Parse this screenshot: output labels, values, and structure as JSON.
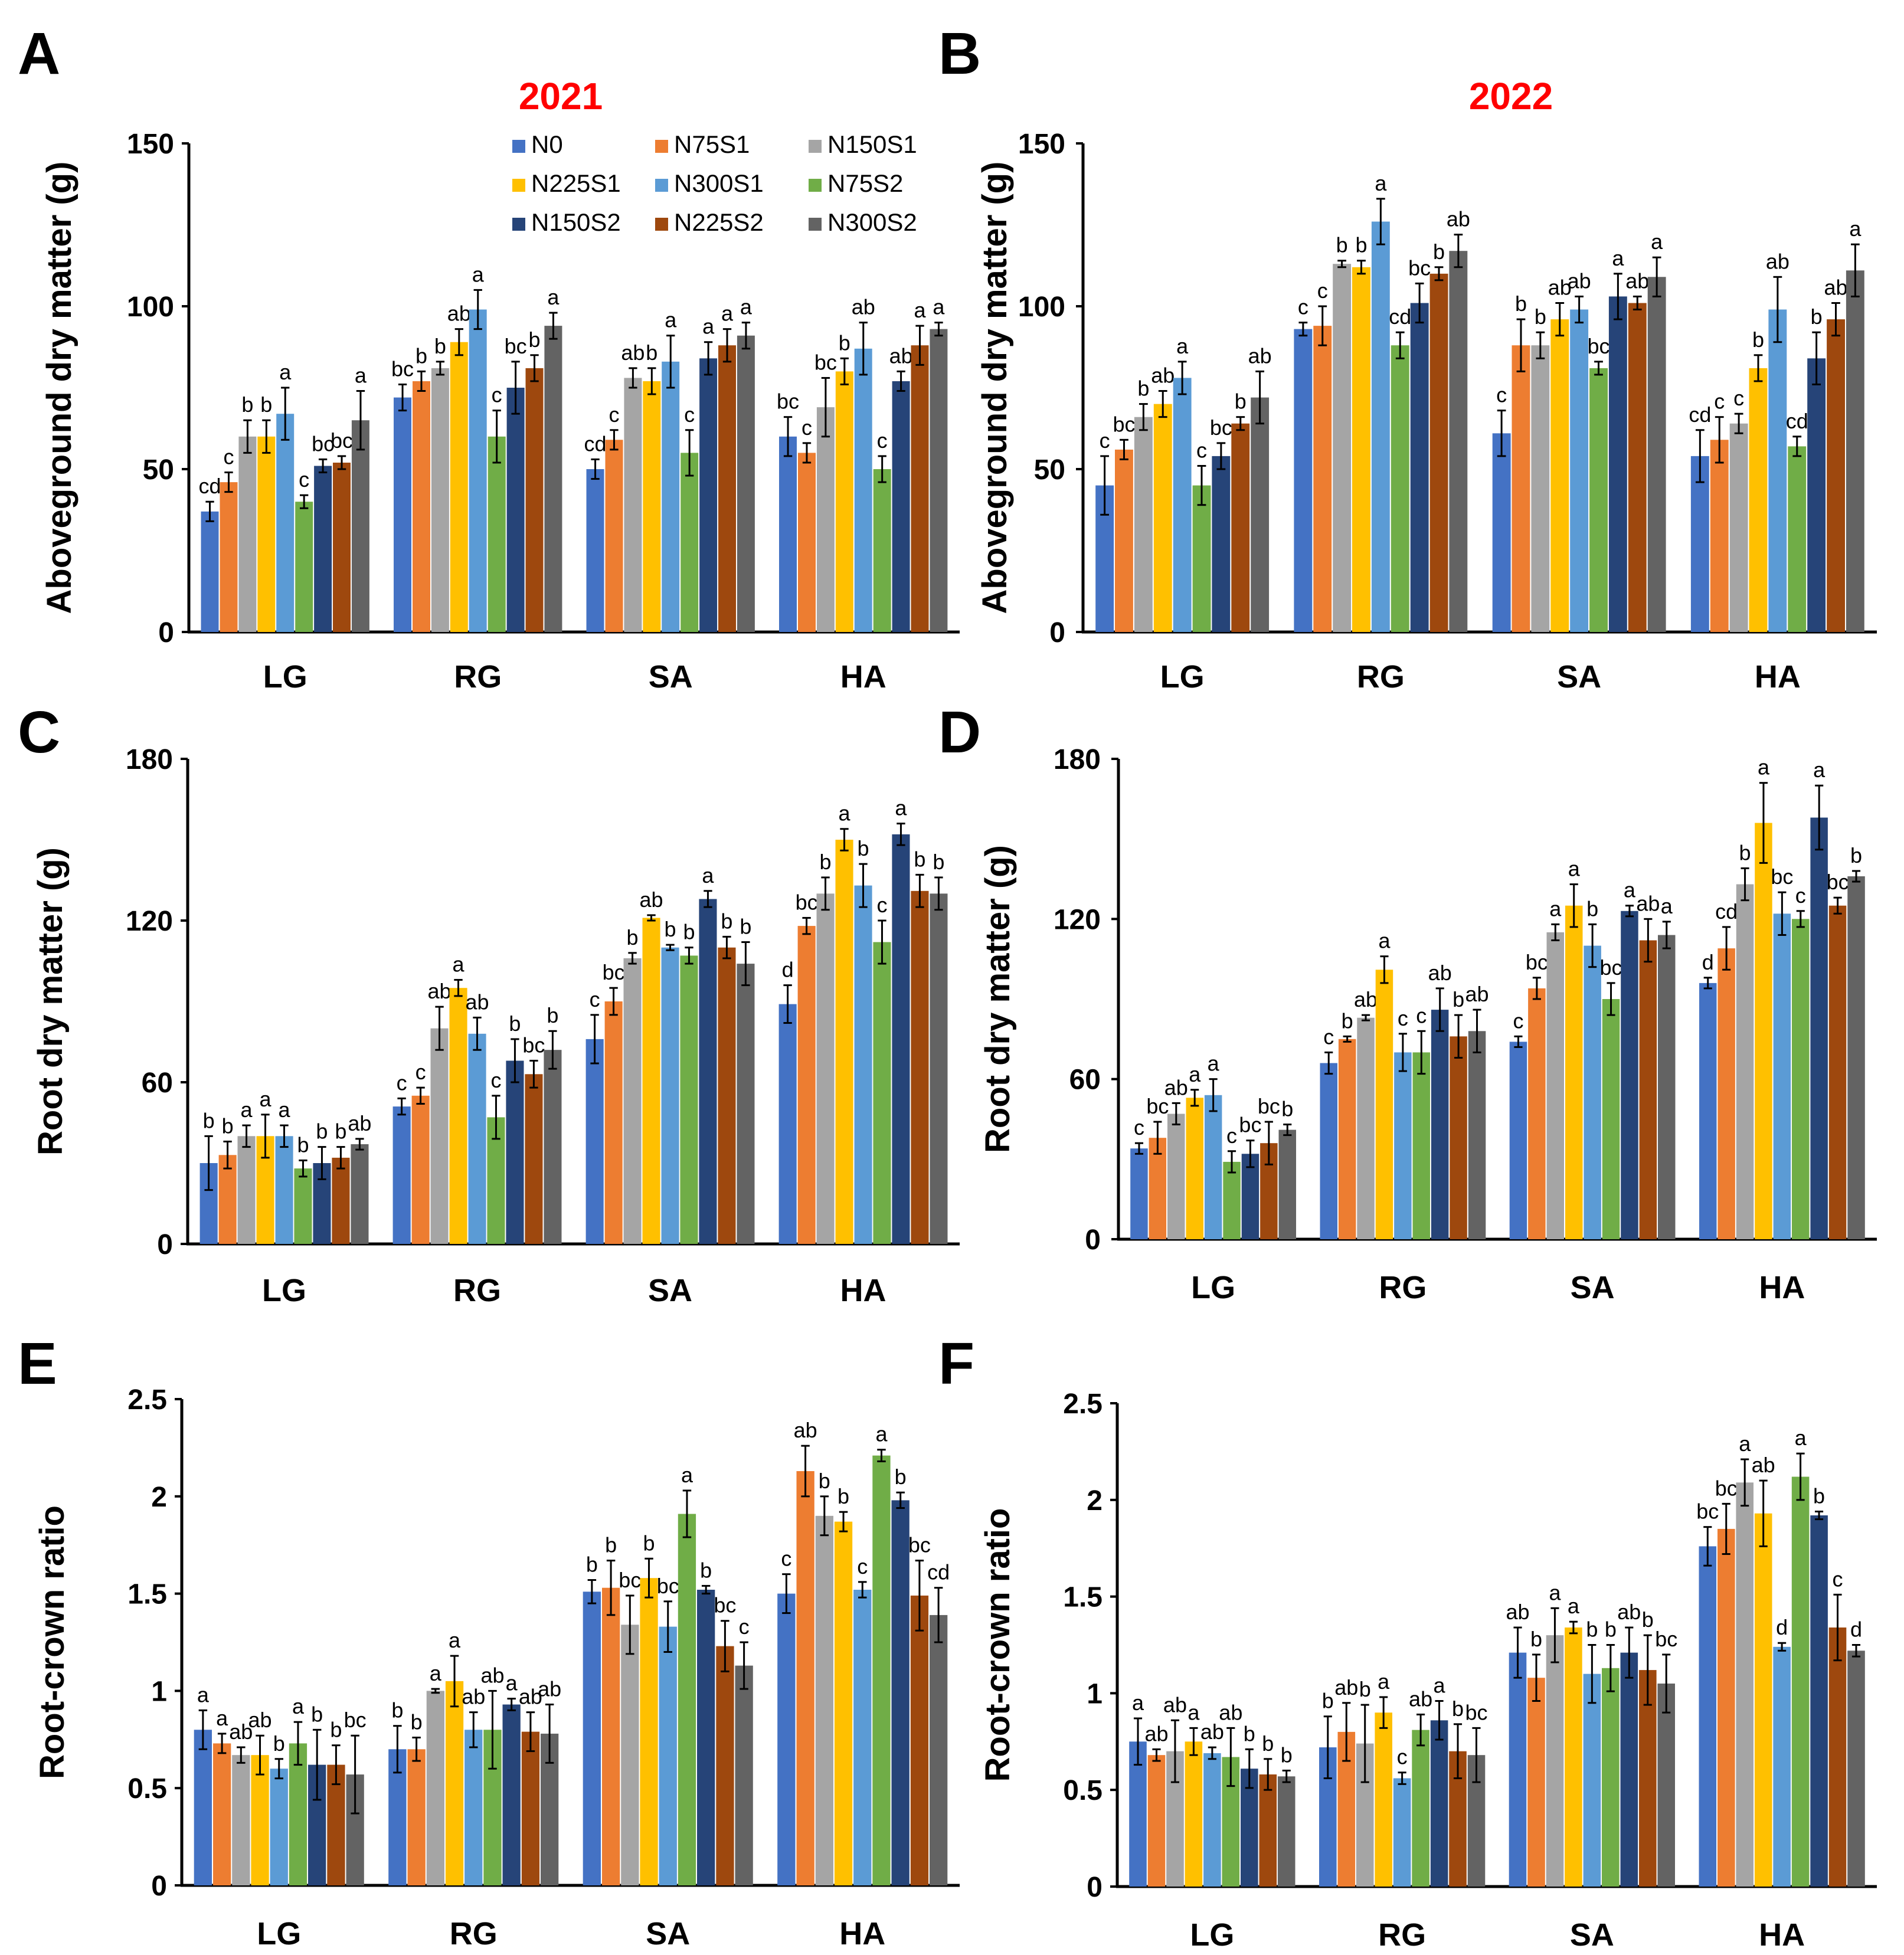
{
  "series": [
    {
      "name": "N0",
      "color": "#4472c4"
    },
    {
      "name": "N75S1",
      "color": "#ed7d31"
    },
    {
      "name": "N150S1",
      "color": "#a5a5a5"
    },
    {
      "name": "N225S1",
      "color": "#ffc000"
    },
    {
      "name": "N300S1",
      "color": "#5b9bd5"
    },
    {
      "name": "N75S2",
      "color": "#70ad47"
    },
    {
      "name": "N150S2",
      "color": "#264478"
    },
    {
      "name": "N225S2",
      "color": "#9e480e"
    },
    {
      "name": "N300S2",
      "color": "#636363"
    }
  ],
  "chart_data": [
    {
      "panel": "A",
      "title": "2021",
      "type": "bar",
      "ylabel": "Aboveground dry matter (g)",
      "categories": [
        "LG",
        "RG",
        "SA",
        "HA"
      ],
      "ylim": [
        0,
        150
      ],
      "yticks": [
        "0",
        "50",
        "100",
        "150"
      ],
      "values": [
        [
          37,
          46,
          60,
          60,
          67,
          40,
          51,
          52,
          65
        ],
        [
          72,
          77,
          81,
          89,
          99,
          60,
          75,
          81,
          94
        ],
        [
          50,
          59,
          78,
          77,
          83,
          55,
          84,
          88,
          91
        ],
        [
          60,
          55,
          69,
          80,
          87,
          50,
          77,
          88,
          93
        ]
      ],
      "errors": [
        [
          3,
          3,
          5,
          5,
          8,
          2,
          2,
          2,
          9
        ],
        [
          4,
          3,
          2,
          4,
          6,
          8,
          8,
          4,
          4
        ],
        [
          3,
          3,
          3,
          4,
          8,
          7,
          5,
          5,
          4
        ],
        [
          6,
          3,
          9,
          4,
          8,
          4,
          3,
          6,
          2
        ]
      ],
      "letters": [
        [
          "cd",
          "c",
          "b",
          "b",
          "a",
          "c",
          "bc",
          "bc",
          "a"
        ],
        [
          "bc",
          "b",
          "b",
          "ab",
          "a",
          "c",
          "bc",
          "b",
          "a"
        ],
        [
          "cd",
          "c",
          "ab",
          "b",
          "a",
          "c",
          "a",
          "a",
          "a"
        ],
        [
          "bc",
          "c",
          "bc",
          "b",
          "ab",
          "c",
          "ab",
          "a",
          "a"
        ]
      ]
    },
    {
      "panel": "B",
      "title": "2022",
      "type": "bar",
      "ylabel": "Aboveground dry matter (g)",
      "categories": [
        "LG",
        "RG",
        "SA",
        "HA"
      ],
      "ylim": [
        0,
        150
      ],
      "yticks": [
        "0",
        "50",
        "100",
        "150"
      ],
      "values": [
        [
          45,
          56,
          66,
          70,
          78,
          45,
          54,
          64,
          72
        ],
        [
          93,
          94,
          113,
          112,
          126,
          88,
          101,
          110,
          117
        ],
        [
          61,
          88,
          88,
          96,
          99,
          81,
          103,
          101,
          109
        ],
        [
          54,
          59,
          64,
          81,
          99,
          57,
          84,
          96,
          111
        ]
      ],
      "errors": [
        [
          9,
          3,
          4,
          4,
          5,
          6,
          4,
          2,
          8
        ],
        [
          2,
          6,
          1,
          2,
          7,
          4,
          6,
          2,
          5
        ],
        [
          7,
          8,
          4,
          5,
          4,
          2,
          7,
          2,
          6
        ],
        [
          8,
          7,
          3,
          4,
          10,
          3,
          8,
          5,
          8
        ]
      ],
      "letters": [
        [
          "c",
          "bc",
          "b",
          "ab",
          "a",
          "c",
          "bc",
          "b",
          "ab"
        ],
        [
          "c",
          "c",
          "b",
          "b",
          "a",
          "cd",
          "bc",
          "b",
          "ab"
        ],
        [
          "c",
          "b",
          "b",
          "ab",
          "ab",
          "bc",
          "a",
          "ab",
          "a"
        ],
        [
          "cd",
          "c",
          "c",
          "b",
          "ab",
          "cd",
          "b",
          "ab",
          "a"
        ]
      ]
    },
    {
      "panel": "C",
      "type": "bar",
      "ylabel": "Root dry matter (g)",
      "categories": [
        "LG",
        "RG",
        "SA",
        "HA"
      ],
      "ylim": [
        0,
        180
      ],
      "yticks": [
        "0",
        "60",
        "120",
        "180"
      ],
      "values": [
        [
          30,
          33,
          40,
          40,
          40,
          28,
          30,
          32,
          37
        ],
        [
          51,
          55,
          80,
          95,
          78,
          47,
          68,
          63,
          72
        ],
        [
          76,
          90,
          106,
          121,
          110,
          107,
          128,
          110,
          104
        ],
        [
          89,
          118,
          130,
          150,
          133,
          112,
          152,
          131,
          130
        ]
      ],
      "errors": [
        [
          10,
          5,
          4,
          8,
          4,
          3,
          6,
          4,
          2
        ],
        [
          3,
          3,
          8,
          3,
          6,
          8,
          8,
          5,
          7
        ],
        [
          9,
          5,
          2,
          1,
          1,
          3,
          3,
          4,
          8
        ],
        [
          7,
          3,
          6,
          4,
          8,
          8,
          4,
          6,
          6
        ]
      ],
      "letters": [
        [
          "b",
          "b",
          "a",
          "a",
          "a",
          "b",
          "b",
          "b",
          "ab"
        ],
        [
          "c",
          "c",
          "ab",
          "a",
          "ab",
          "c",
          "b",
          "bc",
          "b"
        ],
        [
          "c",
          "bc",
          "b",
          "ab",
          "b",
          "b",
          "a",
          "b",
          "b"
        ],
        [
          "d",
          "bc",
          "b",
          "a",
          "b",
          "c",
          "a",
          "b",
          "b"
        ]
      ]
    },
    {
      "panel": "D",
      "type": "bar",
      "ylabel": "Root dry matter (g)",
      "categories": [
        "LG",
        "RG",
        "SA",
        "HA"
      ],
      "ylim": [
        0,
        180
      ],
      "yticks": [
        "0",
        "60",
        "120",
        "180"
      ],
      "values": [
        [
          34,
          38,
          47,
          53,
          54,
          29,
          32,
          36,
          41
        ],
        [
          66,
          75,
          83,
          101,
          70,
          70,
          86,
          76,
          78
        ],
        [
          74,
          94,
          115,
          125,
          110,
          90,
          123,
          112,
          114
        ],
        [
          96,
          109,
          133,
          156,
          122,
          120,
          158,
          125,
          136
        ]
      ],
      "errors": [
        [
          2,
          6,
          4,
          3,
          6,
          4,
          5,
          8,
          2
        ],
        [
          4,
          1,
          1,
          5,
          7,
          8,
          8,
          8,
          8
        ],
        [
          2,
          4,
          3,
          8,
          8,
          6,
          2,
          8,
          5
        ],
        [
          2,
          8,
          6,
          15,
          8,
          3,
          12,
          3,
          2
        ]
      ],
      "letters": [
        [
          "c",
          "bc",
          "ab",
          "a",
          "a",
          "c",
          "bc",
          "bc",
          "b"
        ],
        [
          "c",
          "b",
          "ab",
          "a",
          "c",
          "c",
          "ab",
          "b",
          "ab"
        ],
        [
          "c",
          "bc",
          "a",
          "a",
          "b",
          "bc",
          "a",
          "ab",
          "a"
        ],
        [
          "d",
          "cd",
          "b",
          "a",
          "bc",
          "c",
          "a",
          "bc",
          "b"
        ]
      ]
    },
    {
      "panel": "E",
      "type": "bar",
      "ylabel": "Root-crown ratio",
      "categories": [
        "LG",
        "RG",
        "SA",
        "HA"
      ],
      "ylim": [
        0,
        2.5
      ],
      "yticks": [
        "0",
        "0.5",
        "1",
        "1.5",
        "2",
        "2.5"
      ],
      "values": [
        [
          0.8,
          0.73,
          0.67,
          0.67,
          0.6,
          0.73,
          0.62,
          0.62,
          0.57
        ],
        [
          0.7,
          0.7,
          1.0,
          1.05,
          0.8,
          0.8,
          0.93,
          0.79,
          0.78
        ],
        [
          1.51,
          1.53,
          1.34,
          1.58,
          1.33,
          1.91,
          1.52,
          1.23,
          1.13
        ],
        [
          1.5,
          2.13,
          1.9,
          1.87,
          1.52,
          2.21,
          1.98,
          1.49,
          1.39
        ]
      ],
      "errors": [
        [
          0.1,
          0.05,
          0.04,
          0.1,
          0.05,
          0.11,
          0.18,
          0.1,
          0.2
        ],
        [
          0.12,
          0.06,
          0.01,
          0.13,
          0.09,
          0.2,
          0.03,
          0.1,
          0.15
        ],
        [
          0.06,
          0.14,
          0.15,
          0.1,
          0.13,
          0.12,
          0.02,
          0.13,
          0.12
        ],
        [
          0.1,
          0.13,
          0.1,
          0.05,
          0.04,
          0.03,
          0.04,
          0.18,
          0.14
        ]
      ],
      "letters": [
        [
          "a",
          "a",
          "ab",
          "ab",
          "b",
          "a",
          "b",
          "b",
          "bc"
        ],
        [
          "b",
          "b",
          "a",
          "a",
          "ab",
          "ab",
          "a",
          "ab",
          "ab"
        ],
        [
          "b",
          "b",
          "bc",
          "b",
          "bc",
          "a",
          "b",
          "bc",
          "c"
        ],
        [
          "c",
          "ab",
          "b",
          "b",
          "c",
          "a",
          "b",
          "bc",
          "cd"
        ]
      ]
    },
    {
      "panel": "F",
      "type": "bar",
      "ylabel": "Root-crown ratio",
      "categories": [
        "LG",
        "RG",
        "SA",
        "HA"
      ],
      "ylim": [
        0,
        2.5
      ],
      "yticks": [
        "0",
        "0.5",
        "1",
        "1.5",
        "2",
        "2.5"
      ],
      "values": [
        [
          0.75,
          0.68,
          0.7,
          0.75,
          0.69,
          0.67,
          0.61,
          0.58,
          0.57
        ],
        [
          0.72,
          0.8,
          0.74,
          0.9,
          0.56,
          0.81,
          0.86,
          0.7,
          0.68
        ],
        [
          1.21,
          1.08,
          1.3,
          1.34,
          1.1,
          1.13,
          1.21,
          1.12,
          1.05
        ],
        [
          1.76,
          1.85,
          2.09,
          1.93,
          1.24,
          2.12,
          1.92,
          1.34,
          1.22
        ]
      ],
      "errors": [
        [
          0.12,
          0.03,
          0.16,
          0.07,
          0.03,
          0.15,
          0.1,
          0.08,
          0.03
        ],
        [
          0.16,
          0.15,
          0.2,
          0.08,
          0.03,
          0.08,
          0.1,
          0.14,
          0.14
        ],
        [
          0.13,
          0.12,
          0.14,
          0.03,
          0.15,
          0.12,
          0.13,
          0.18,
          0.15
        ],
        [
          0.1,
          0.13,
          0.12,
          0.17,
          0.02,
          0.12,
          0.02,
          0.17,
          0.03
        ]
      ],
      "letters": [
        [
          "a",
          "ab",
          "ab",
          "a",
          "ab",
          "ab",
          "b",
          "b",
          "b"
        ],
        [
          "b",
          "ab",
          "b",
          "a",
          "c",
          "ab",
          "a",
          "b",
          "bc"
        ],
        [
          "ab",
          "b",
          "a",
          "a",
          "b",
          "b",
          "ab",
          "b",
          "bc"
        ],
        [
          "bc",
          "bc",
          "a",
          "ab",
          "d",
          "a",
          "b",
          "c",
          "d"
        ]
      ]
    }
  ]
}
